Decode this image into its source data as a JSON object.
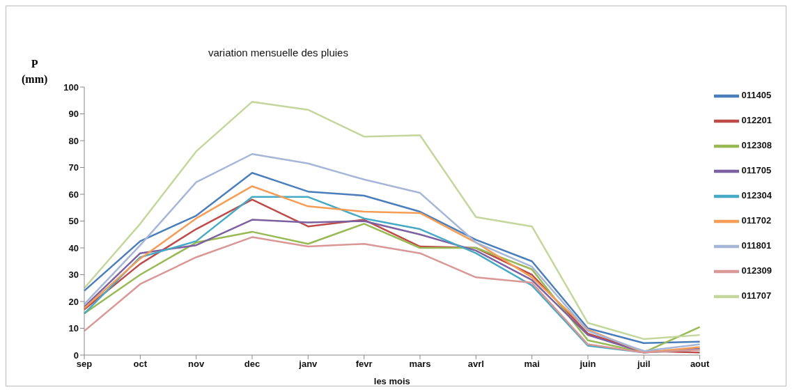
{
  "chart_data": {
    "type": "line",
    "title": "variation mensuelle des pluies",
    "xlabel": "les mois",
    "ylabel": "P (mm)",
    "categories": [
      "sep",
      "oct",
      "nov",
      "dec",
      "janv",
      "fevr",
      "mars",
      "avrl",
      "mai",
      "juin",
      "juil",
      "aout"
    ],
    "ylim": [
      0,
      100
    ],
    "yticks": [
      0,
      10,
      20,
      30,
      40,
      50,
      60,
      70,
      80,
      90,
      100
    ],
    "grid": false,
    "legend": "right",
    "marker": "none",
    "line_style": "solid",
    "series": [
      {
        "name": "011405",
        "color": "#4a7ebb",
        "values": [
          24,
          42.5,
          52,
          68,
          61,
          59.5,
          53.5,
          43,
          35,
          10,
          4.5,
          5
        ]
      },
      {
        "name": "012201",
        "color": "#be4b48",
        "values": [
          17,
          34,
          47,
          58,
          48,
          50.5,
          40.5,
          40,
          30,
          8,
          1.5,
          1
        ]
      },
      {
        "name": "012308",
        "color": "#98b954",
        "values": [
          15.5,
          30,
          42,
          46,
          41.5,
          49,
          40,
          40,
          32,
          5.5,
          1,
          10.5
        ]
      },
      {
        "name": "011705",
        "color": "#7d60a0",
        "values": [
          18,
          38,
          41,
          50.5,
          49.5,
          50,
          45,
          39,
          28,
          7.5,
          1,
          2.5
        ]
      },
      {
        "name": "012304",
        "color": "#46aac5",
        "values": [
          15.5,
          36.5,
          42.5,
          59,
          59,
          51,
          47,
          38,
          26,
          3.5,
          1,
          2
        ]
      },
      {
        "name": "011702",
        "color": "#f59d56",
        "values": [
          17.5,
          36,
          51,
          63,
          55.5,
          53.5,
          53,
          42,
          29,
          9.5,
          1,
          3
        ]
      },
      {
        "name": "011801",
        "color": "#a5b6d8",
        "values": [
          19,
          41,
          64.5,
          75,
          71.5,
          65.5,
          60.5,
          42,
          33,
          9,
          1.5,
          4
        ]
      },
      {
        "name": "012309",
        "color": "#d99795",
        "values": [
          9,
          26.5,
          36.5,
          44,
          40.5,
          41.5,
          38,
          29,
          27,
          4,
          1,
          2
        ]
      },
      {
        "name": "011707",
        "color": "#c3d69b",
        "values": [
          25,
          49,
          76,
          94.5,
          91.5,
          81.5,
          82,
          51.5,
          48,
          12,
          6,
          7.5
        ]
      }
    ]
  }
}
